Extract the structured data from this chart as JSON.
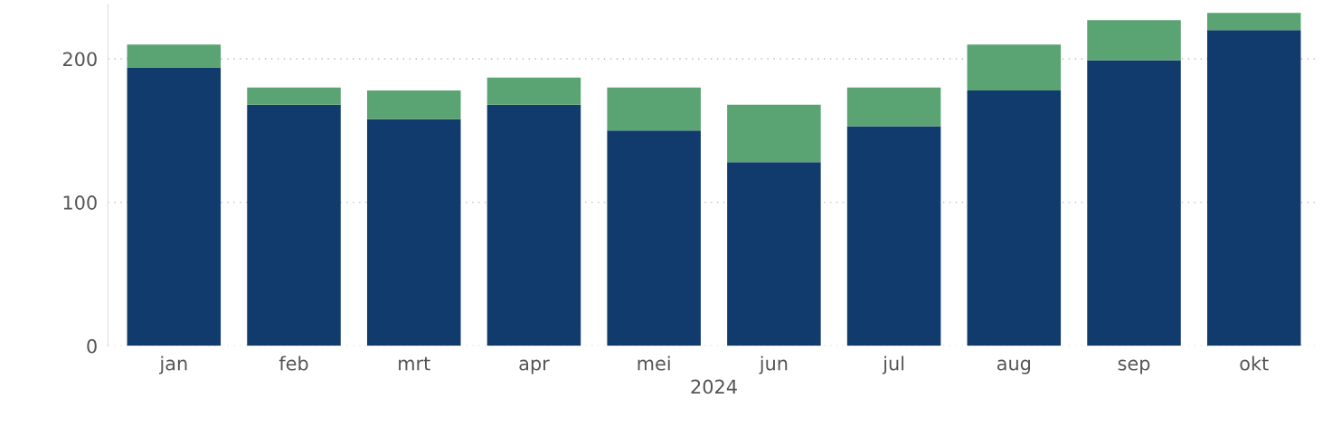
{
  "chart_data": {
    "type": "bar",
    "stacked": true,
    "xlabel": "2024",
    "categories": [
      "jan",
      "feb",
      "mrt",
      "apr",
      "mei",
      "jun",
      "jul",
      "aug",
      "sep",
      "okt"
    ],
    "series": [
      {
        "color": "#123b6d",
        "values": [
          194,
          168,
          158,
          168,
          150,
          128,
          153,
          178,
          199,
          220
        ]
      },
      {
        "color": "#5aa372",
        "values": [
          16,
          12,
          20,
          19,
          30,
          40,
          27,
          32,
          28,
          12
        ]
      }
    ],
    "ylim": [
      0,
      238
    ],
    "yticks": [
      0,
      100,
      200
    ],
    "grid": "y",
    "legend": false
  }
}
